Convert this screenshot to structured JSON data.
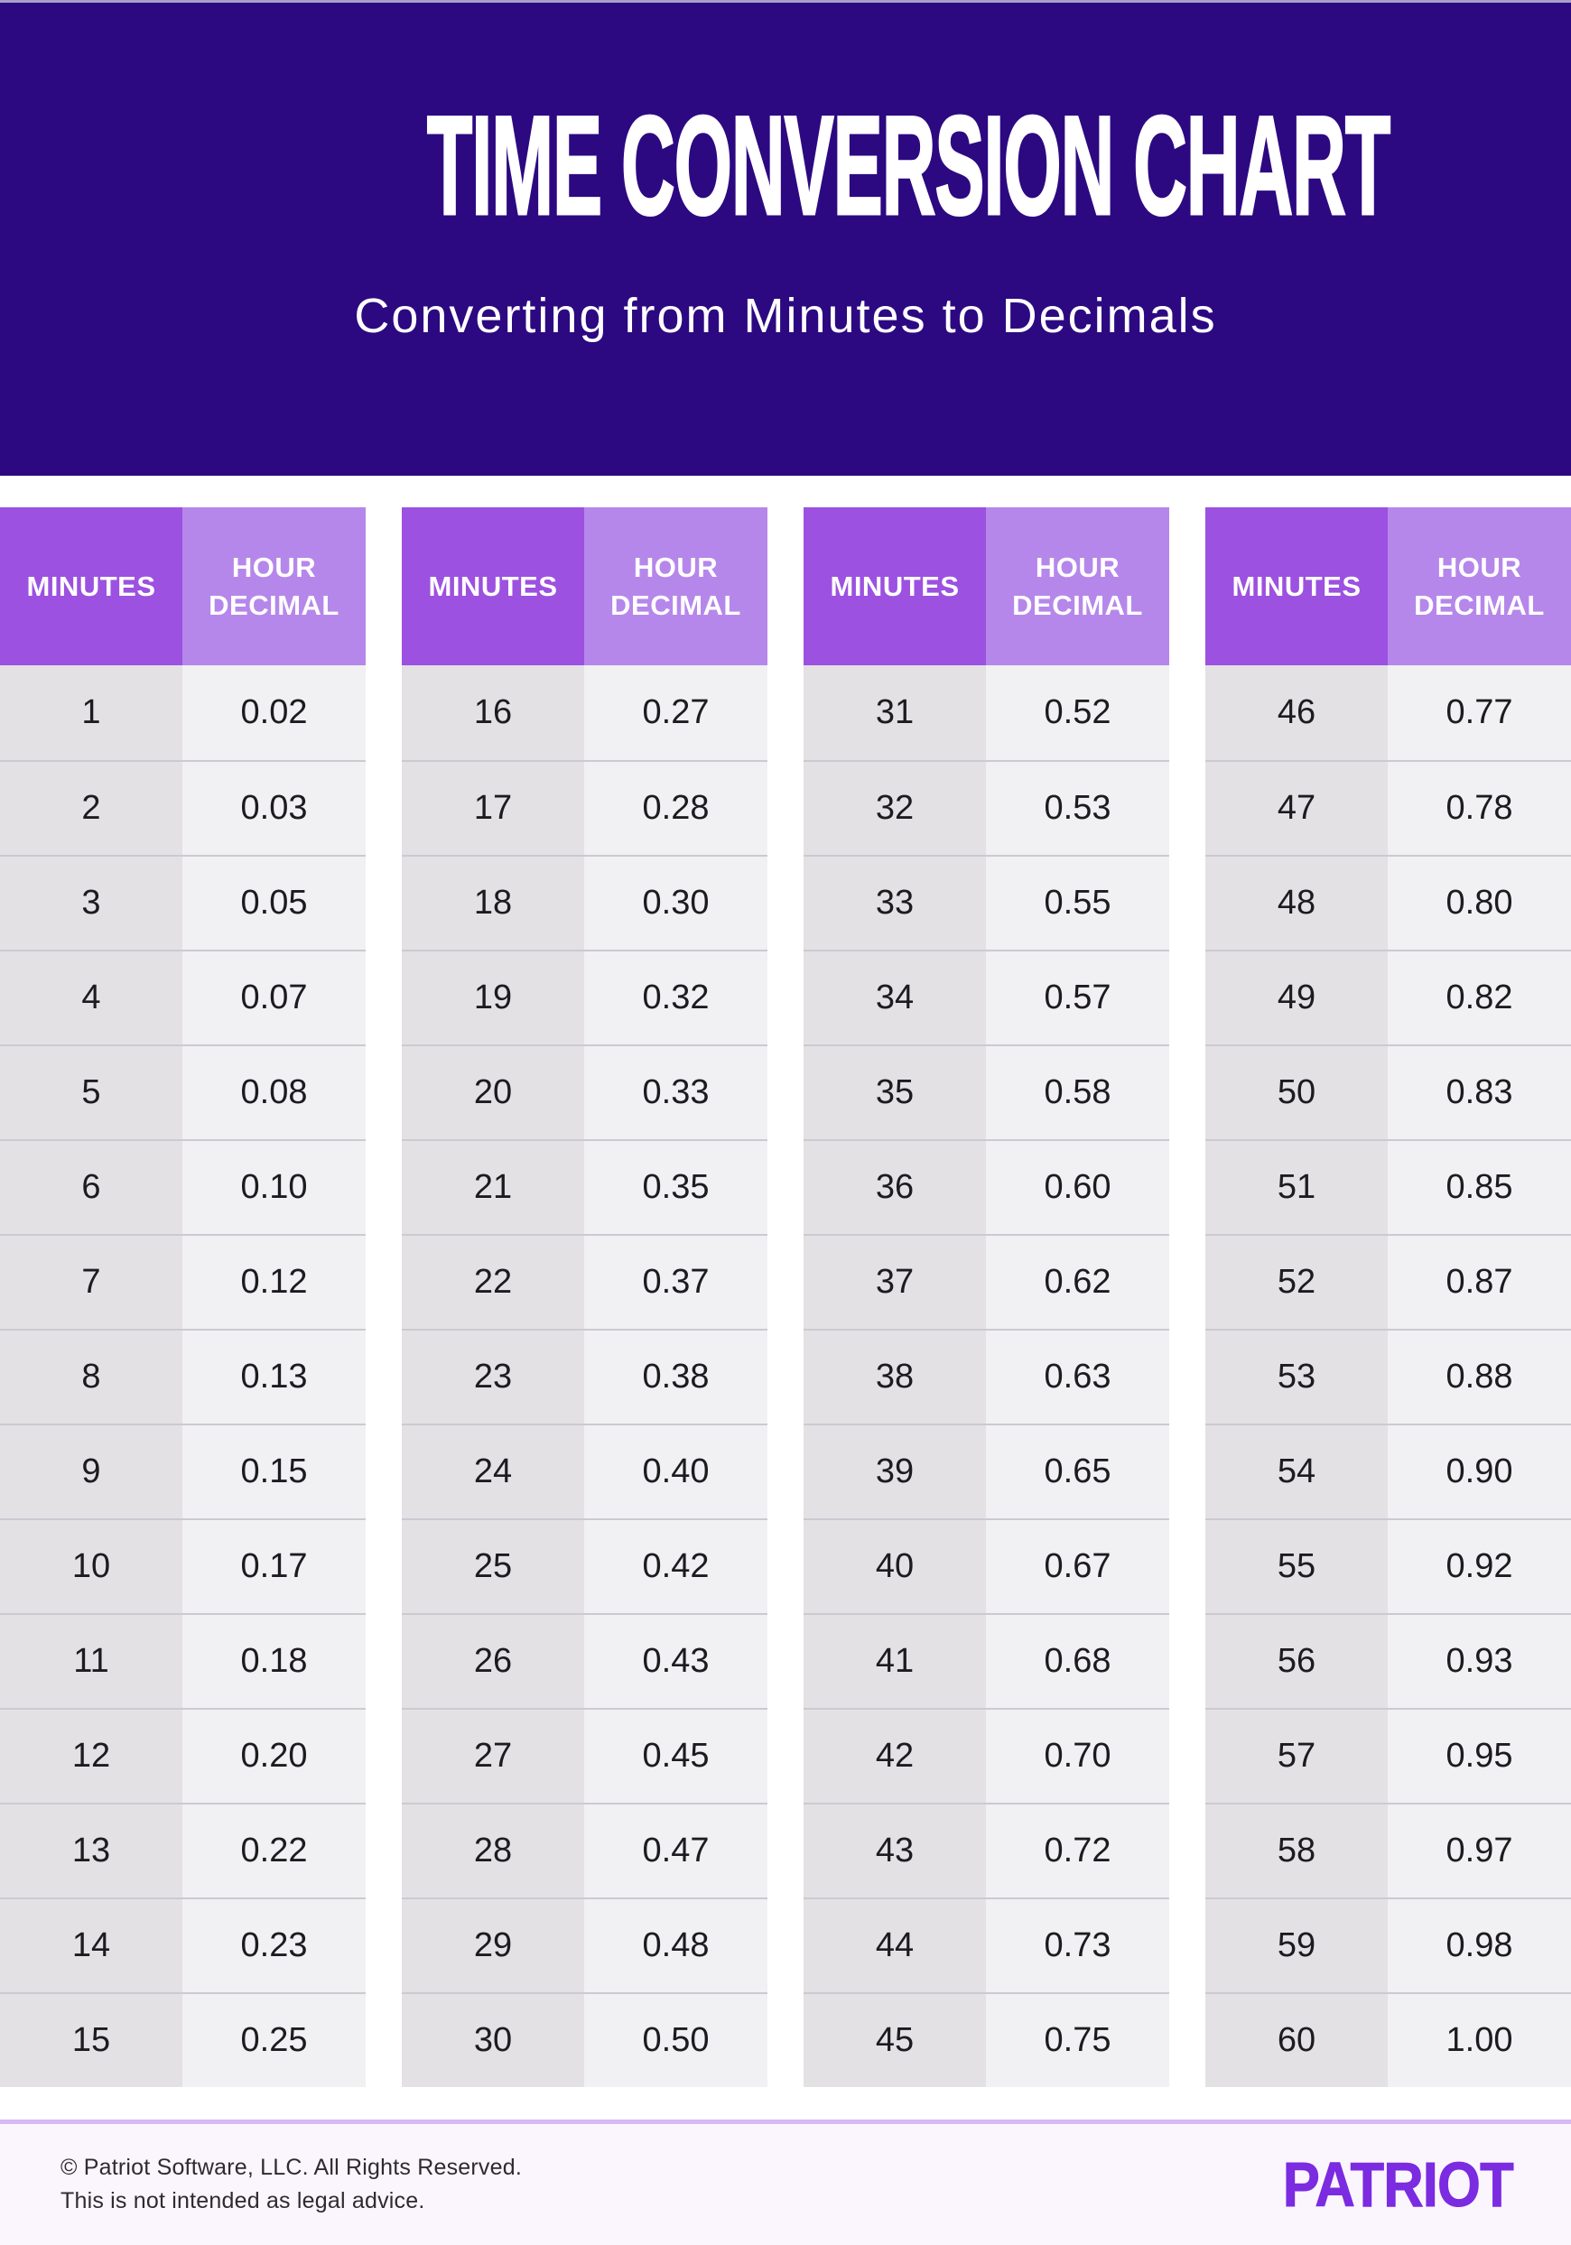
{
  "header": {
    "title": "TIME CONVERSION CHART",
    "subtitle": "Converting from Minutes to Decimals"
  },
  "chart_data": {
    "type": "table",
    "title": "TIME CONVERSION CHART",
    "subtitle": "Converting from Minutes to Decimals",
    "columns": [
      "MINUTES",
      "HOUR DECIMAL"
    ],
    "tables": [
      {
        "rows": [
          [
            "1",
            "0.02"
          ],
          [
            "2",
            "0.03"
          ],
          [
            "3",
            "0.05"
          ],
          [
            "4",
            "0.07"
          ],
          [
            "5",
            "0.08"
          ],
          [
            "6",
            "0.10"
          ],
          [
            "7",
            "0.12"
          ],
          [
            "8",
            "0.13"
          ],
          [
            "9",
            "0.15"
          ],
          [
            "10",
            "0.17"
          ],
          [
            "11",
            "0.18"
          ],
          [
            "12",
            "0.20"
          ],
          [
            "13",
            "0.22"
          ],
          [
            "14",
            "0.23"
          ],
          [
            "15",
            "0.25"
          ]
        ]
      },
      {
        "rows": [
          [
            "16",
            "0.27"
          ],
          [
            "17",
            "0.28"
          ],
          [
            "18",
            "0.30"
          ],
          [
            "19",
            "0.32"
          ],
          [
            "20",
            "0.33"
          ],
          [
            "21",
            "0.35"
          ],
          [
            "22",
            "0.37"
          ],
          [
            "23",
            "0.38"
          ],
          [
            "24",
            "0.40"
          ],
          [
            "25",
            "0.42"
          ],
          [
            "26",
            "0.43"
          ],
          [
            "27",
            "0.45"
          ],
          [
            "28",
            "0.47"
          ],
          [
            "29",
            "0.48"
          ],
          [
            "30",
            "0.50"
          ]
        ]
      },
      {
        "rows": [
          [
            "31",
            "0.52"
          ],
          [
            "32",
            "0.53"
          ],
          [
            "33",
            "0.55"
          ],
          [
            "34",
            "0.57"
          ],
          [
            "35",
            "0.58"
          ],
          [
            "36",
            "0.60"
          ],
          [
            "37",
            "0.62"
          ],
          [
            "38",
            "0.63"
          ],
          [
            "39",
            "0.65"
          ],
          [
            "40",
            "0.67"
          ],
          [
            "41",
            "0.68"
          ],
          [
            "42",
            "0.70"
          ],
          [
            "43",
            "0.72"
          ],
          [
            "44",
            "0.73"
          ],
          [
            "45",
            "0.75"
          ]
        ]
      },
      {
        "rows": [
          [
            "46",
            "0.77"
          ],
          [
            "47",
            "0.78"
          ],
          [
            "48",
            "0.80"
          ],
          [
            "49",
            "0.82"
          ],
          [
            "50",
            "0.83"
          ],
          [
            "51",
            "0.85"
          ],
          [
            "52",
            "0.87"
          ],
          [
            "53",
            "0.88"
          ],
          [
            "54",
            "0.90"
          ],
          [
            "55",
            "0.92"
          ],
          [
            "56",
            "0.93"
          ],
          [
            "57",
            "0.95"
          ],
          [
            "58",
            "0.97"
          ],
          [
            "59",
            "0.98"
          ],
          [
            "60",
            "1.00"
          ]
        ]
      }
    ]
  },
  "footer": {
    "copyright": "© Patriot Software, LLC. All Rights Reserved.",
    "disclaimer": "This is not intended as legal advice.",
    "logo_text": "PATRIOT"
  },
  "colors": {
    "hero_bg": "#2c0981",
    "top_strip": "#a79fc9",
    "col_minutes_bg": "#9c51e0",
    "col_decimal_bg": "#b687ea",
    "cell_minutes_bg": "#e3e1e4",
    "cell_decimal_bg": "#f1f0f2",
    "row_divider": "#cdc9d1",
    "footer_bg": "#fbf6fe",
    "footer_divider": "#d9b9f1",
    "logo_purple": "#7b2be0",
    "text_dark": "#1d1b1f",
    "footer_text": "#2e2b30"
  }
}
